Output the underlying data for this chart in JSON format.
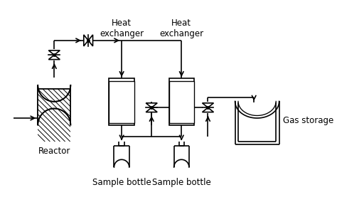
{
  "bg_color": "#ffffff",
  "line_color": "#000000",
  "labels": {
    "reactor": "Reactor",
    "heat_ex1": "Heat\nexchanger",
    "heat_ex2": "Heat\nexchanger",
    "sample1": "Sample bottle",
    "sample2": "Sample bottle",
    "gas_storage": "Gas storage"
  },
  "label_fontsize": 8.5,
  "figsize": [
    4.74,
    2.98
  ],
  "dpi": 100
}
